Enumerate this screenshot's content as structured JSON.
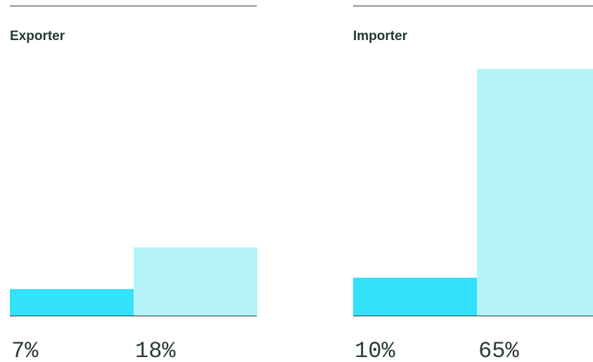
{
  "chart_data": [
    {
      "type": "bar",
      "title": "Exporter",
      "values": [
        7,
        18
      ],
      "value_labels": [
        "7%",
        "18%"
      ],
      "colors": [
        "#33e1fb",
        "#b6f4fb"
      ],
      "ylim": [
        0,
        65
      ]
    },
    {
      "type": "bar",
      "title": "Importer",
      "values": [
        10,
        65
      ],
      "value_labels": [
        "10%",
        "65%"
      ],
      "colors": [
        "#33e1fb",
        "#b6f4fb"
      ],
      "ylim": [
        0,
        65
      ]
    }
  ]
}
